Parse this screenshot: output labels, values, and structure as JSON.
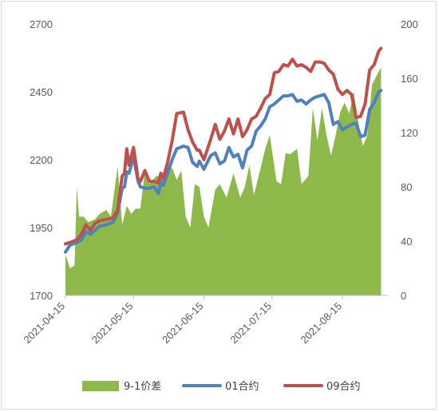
{
  "chart_data": {
    "type": "line",
    "title": "",
    "x_ticks": [
      "2021-04-15",
      "2021-05-15",
      "2021-06-15",
      "2021-07-15",
      "2021-08-15"
    ],
    "y_left": {
      "min": 1700,
      "max": 2700,
      "ticks": [
        1700,
        1950,
        2200,
        2450,
        2700
      ]
    },
    "y_right": {
      "min": 0,
      "max": 200,
      "ticks": [
        0,
        40,
        80,
        120,
        160,
        200
      ]
    },
    "legend_position": "bottom",
    "grid": false,
    "series": [
      {
        "name": "9-1价差",
        "type": "area",
        "axis": "right",
        "color": "#8DB84A",
        "x": [
          "2021-04-15",
          "2021-04-17",
          "2021-04-19",
          "2021-04-20",
          "2021-04-21",
          "2021-04-23",
          "2021-04-25",
          "2021-04-28",
          "2021-04-30",
          "2021-05-03",
          "2021-05-05",
          "2021-05-08",
          "2021-05-10",
          "2021-05-12",
          "2021-05-14",
          "2021-05-16",
          "2021-05-18",
          "2021-05-20",
          "2021-05-22",
          "2021-05-25",
          "2021-05-28",
          "2021-06-01",
          "2021-06-03",
          "2021-06-05",
          "2021-06-07",
          "2021-06-09",
          "2021-06-11",
          "2021-06-13",
          "2021-06-15",
          "2021-06-17",
          "2021-06-20",
          "2021-06-22",
          "2021-06-25",
          "2021-06-28",
          "2021-07-01",
          "2021-07-03",
          "2021-07-05",
          "2021-07-07",
          "2021-07-10",
          "2021-07-12",
          "2021-07-14",
          "2021-07-17",
          "2021-07-19",
          "2021-07-21",
          "2021-07-23",
          "2021-07-26",
          "2021-07-28",
          "2021-07-31",
          "2021-08-02",
          "2021-08-04",
          "2021-08-06",
          "2021-08-08",
          "2021-08-10",
          "2021-08-12",
          "2021-08-14",
          "2021-08-16",
          "2021-08-18",
          "2021-08-20",
          "2021-08-22",
          "2021-08-24",
          "2021-08-26",
          "2021-08-28",
          "2021-08-31",
          "2021-09-01"
        ],
        "values": [
          30,
          20,
          22,
          80,
          58,
          58,
          54,
          56,
          60,
          63,
          58,
          95,
          52,
          66,
          60,
          64,
          64,
          92,
          82,
          88,
          88,
          94,
          85,
          92,
          58,
          50,
          82,
          80,
          58,
          50,
          78,
          82,
          72,
          90,
          72,
          80,
          96,
          74,
          94,
          108,
          118,
          84,
          82,
          105,
          104,
          108,
          82,
          88,
          138,
          114,
          138,
          118,
          103,
          118,
          135,
          142,
          134,
          150,
          128,
          110,
          118,
          155,
          165,
          168
        ]
      },
      {
        "name": "01合约",
        "type": "line",
        "axis": "left",
        "color": "#4F81BD",
        "x": [
          "2021-04-15",
          "2021-04-17",
          "2021-04-20",
          "2021-04-22",
          "2021-04-24",
          "2021-04-26",
          "2021-04-28",
          "2021-04-30",
          "2021-05-03",
          "2021-05-06",
          "2021-05-08",
          "2021-05-10",
          "2021-05-11",
          "2021-05-12",
          "2021-05-13",
          "2021-05-15",
          "2021-05-17",
          "2021-05-18",
          "2021-05-20",
          "2021-05-22",
          "2021-05-24",
          "2021-05-26",
          "2021-05-27",
          "2021-05-28",
          "2021-05-30",
          "2021-06-01",
          "2021-06-03",
          "2021-06-06",
          "2021-06-08",
          "2021-06-10",
          "2021-06-12",
          "2021-06-13",
          "2021-06-15",
          "2021-06-18",
          "2021-06-20",
          "2021-06-22",
          "2021-06-24",
          "2021-06-26",
          "2021-06-28",
          "2021-06-30",
          "2021-07-02",
          "2021-07-04",
          "2021-07-06",
          "2021-07-08",
          "2021-07-10",
          "2021-07-12",
          "2021-07-14",
          "2021-07-16",
          "2021-07-18",
          "2021-07-20",
          "2021-07-22",
          "2021-07-24",
          "2021-07-26",
          "2021-07-28",
          "2021-07-30",
          "2021-08-01",
          "2021-08-03",
          "2021-08-05",
          "2021-08-07",
          "2021-08-09",
          "2021-08-11",
          "2021-08-13",
          "2021-08-15",
          "2021-08-17",
          "2021-08-19",
          "2021-08-21",
          "2021-08-23",
          "2021-08-25",
          "2021-08-27",
          "2021-08-29",
          "2021-08-31",
          "2021-09-01"
        ],
        "values": [
          1860,
          1885,
          1895,
          1905,
          1935,
          1925,
          1940,
          1955,
          1960,
          1970,
          2005,
          2095,
          2100,
          2155,
          2150,
          2210,
          2120,
          2100,
          2095,
          2095,
          2100,
          2075,
          2120,
          2105,
          2150,
          2200,
          2240,
          2250,
          2245,
          2190,
          2175,
          2195,
          2165,
          2215,
          2225,
          2185,
          2195,
          2245,
          2210,
          2220,
          2170,
          2235,
          2250,
          2305,
          2325,
          2350,
          2395,
          2405,
          2420,
          2435,
          2435,
          2440,
          2415,
          2420,
          2405,
          2420,
          2430,
          2435,
          2440,
          2410,
          2330,
          2340,
          2310,
          2320,
          2330,
          2335,
          2285,
          2290,
          2385,
          2410,
          2450,
          2455
        ]
      },
      {
        "name": "09合约",
        "type": "line",
        "axis": "left",
        "color": "#C0504D",
        "x": [
          "2021-04-15",
          "2021-04-17",
          "2021-04-20",
          "2021-04-22",
          "2021-04-24",
          "2021-04-26",
          "2021-04-28",
          "2021-04-30",
          "2021-05-03",
          "2021-05-06",
          "2021-05-08",
          "2021-05-10",
          "2021-05-11",
          "2021-05-12",
          "2021-05-13",
          "2021-05-15",
          "2021-05-17",
          "2021-05-18",
          "2021-05-20",
          "2021-05-22",
          "2021-05-24",
          "2021-05-26",
          "2021-05-27",
          "2021-05-28",
          "2021-05-30",
          "2021-06-01",
          "2021-06-03",
          "2021-06-06",
          "2021-06-08",
          "2021-06-10",
          "2021-06-12",
          "2021-06-13",
          "2021-06-15",
          "2021-06-18",
          "2021-06-20",
          "2021-06-22",
          "2021-06-24",
          "2021-06-26",
          "2021-06-28",
          "2021-06-30",
          "2021-07-02",
          "2021-07-04",
          "2021-07-06",
          "2021-07-08",
          "2021-07-10",
          "2021-07-12",
          "2021-07-14",
          "2021-07-16",
          "2021-07-18",
          "2021-07-20",
          "2021-07-22",
          "2021-07-24",
          "2021-07-26",
          "2021-07-28",
          "2021-07-30",
          "2021-08-01",
          "2021-08-03",
          "2021-08-05",
          "2021-08-07",
          "2021-08-09",
          "2021-08-11",
          "2021-08-13",
          "2021-08-15",
          "2021-08-17",
          "2021-08-19",
          "2021-08-21",
          "2021-08-23",
          "2021-08-25",
          "2021-08-27",
          "2021-08-29",
          "2021-08-31",
          "2021-09-01"
        ],
        "values": [
          1890,
          1895,
          1905,
          1925,
          1960,
          1940,
          1965,
          1975,
          1980,
          1985,
          2015,
          2140,
          2150,
          2240,
          2180,
          2245,
          2130,
          2120,
          2160,
          2120,
          2120,
          2115,
          2150,
          2130,
          2190,
          2270,
          2370,
          2375,
          2310,
          2265,
          2235,
          2235,
          2200,
          2275,
          2330,
          2275,
          2305,
          2350,
          2295,
          2350,
          2285,
          2310,
          2350,
          2360,
          2390,
          2425,
          2440,
          2520,
          2525,
          2550,
          2545,
          2570,
          2545,
          2550,
          2540,
          2525,
          2560,
          2560,
          2555,
          2530,
          2515,
          2460,
          2440,
          2455,
          2440,
          2355,
          2360,
          2405,
          2530,
          2550,
          2600,
          2610
        ]
      }
    ]
  }
}
